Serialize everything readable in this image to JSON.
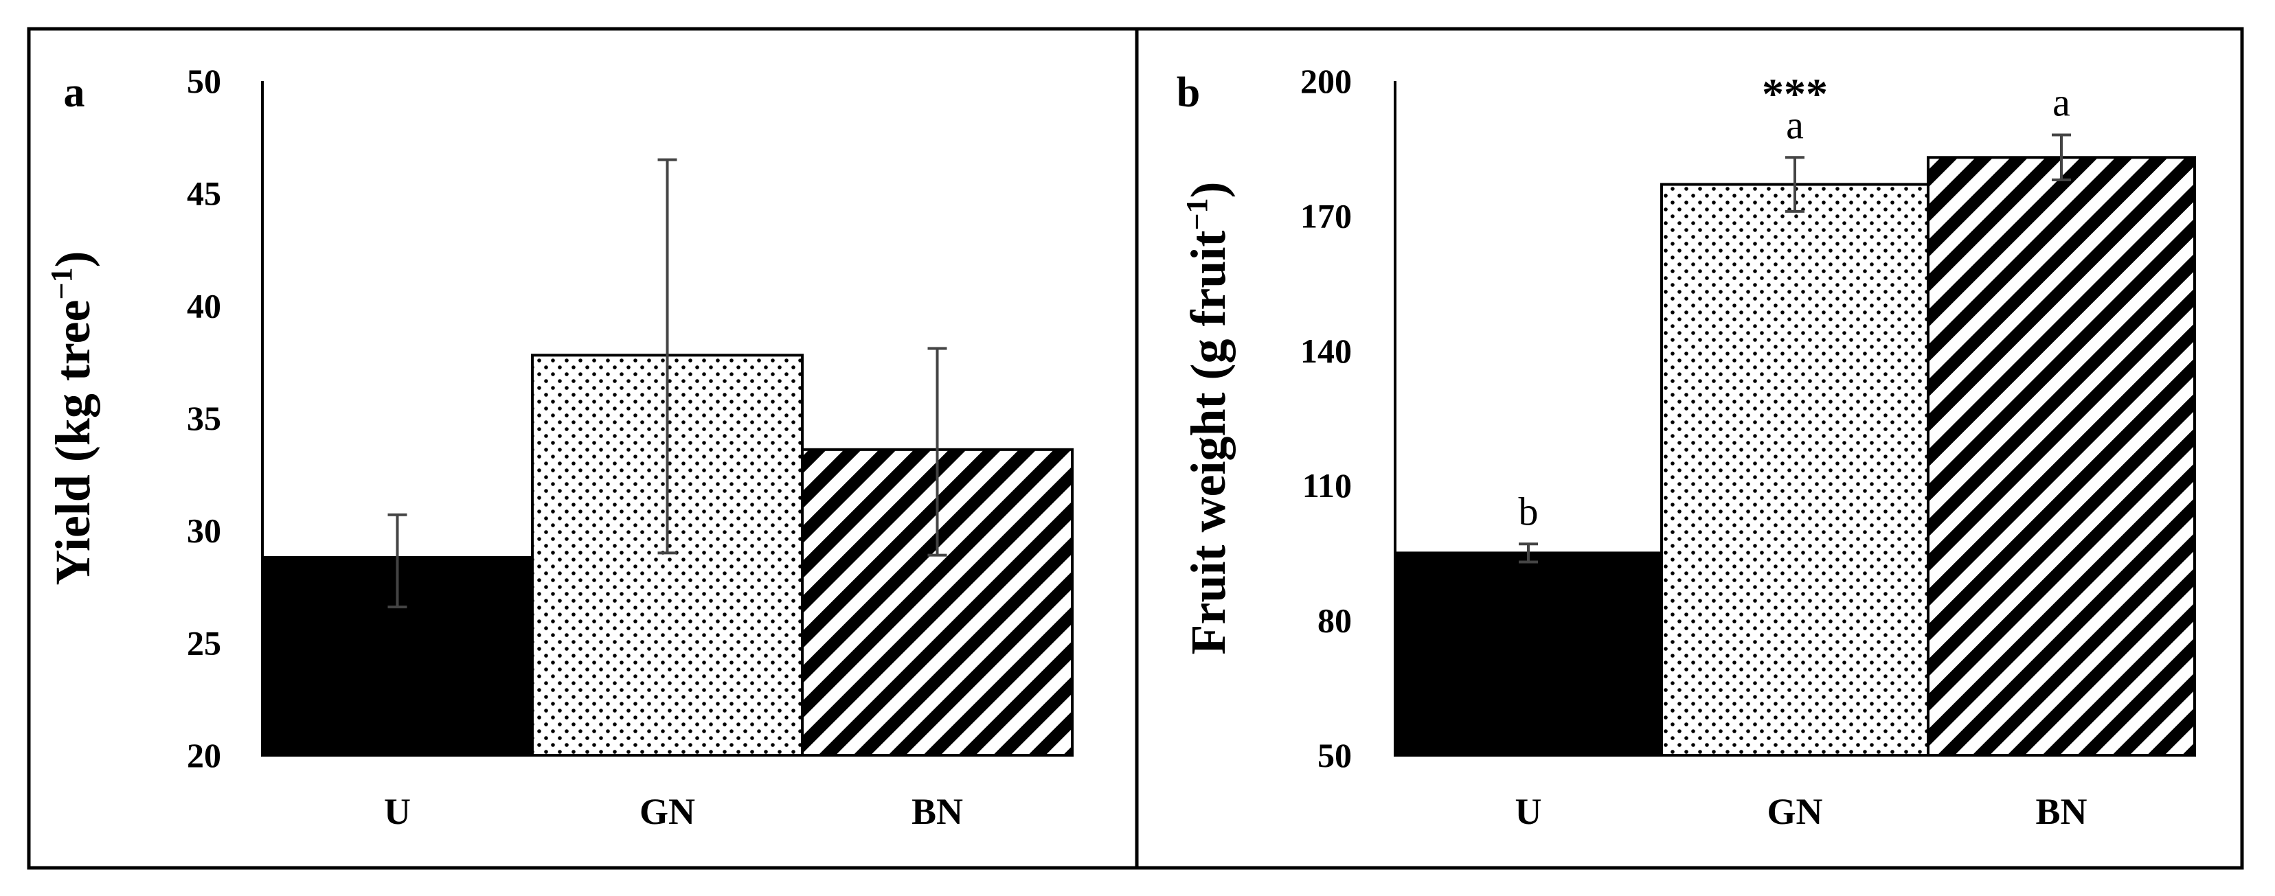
{
  "chart_data": [
    {
      "type": "bar",
      "panel": "a",
      "ylabel": "Yield (kg tree",
      "ylabel_sup": "−1",
      "ylabel_end": ")",
      "categories": [
        "U",
        "GN",
        "BN"
      ],
      "values": [
        28.8,
        37.8,
        33.6
      ],
      "error_low": [
        26.6,
        29.0,
        28.9
      ],
      "error_high": [
        30.7,
        46.5,
        38.1
      ],
      "ylim": [
        20,
        50
      ],
      "yticks": [
        20,
        25,
        30,
        35,
        40,
        45,
        50
      ],
      "ytick_labels": [
        "20",
        "25",
        "30",
        "35",
        "40",
        "45",
        "50"
      ],
      "bar_fills": [
        "solid-black",
        "dots",
        "diagonal-stripes"
      ],
      "annotations": []
    },
    {
      "type": "bar",
      "panel": "b",
      "ylabel": "Fruit weight (g fruit",
      "ylabel_sup": "−1",
      "ylabel_end": ")",
      "categories": [
        "U",
        "GN",
        "BN"
      ],
      "values": [
        95,
        177,
        183
      ],
      "error_low": [
        93,
        171,
        178
      ],
      "error_high": [
        97,
        183,
        188
      ],
      "ylim": [
        50,
        200
      ],
      "yticks": [
        50,
        80,
        110,
        140,
        170,
        200
      ],
      "ytick_labels": [
        "50",
        "80",
        "110",
        "140",
        "170",
        "200"
      ],
      "bar_fills": [
        "solid-black",
        "dots",
        "diagonal-stripes"
      ],
      "letters": [
        "b",
        "a",
        "a"
      ],
      "significance": "***"
    }
  ]
}
